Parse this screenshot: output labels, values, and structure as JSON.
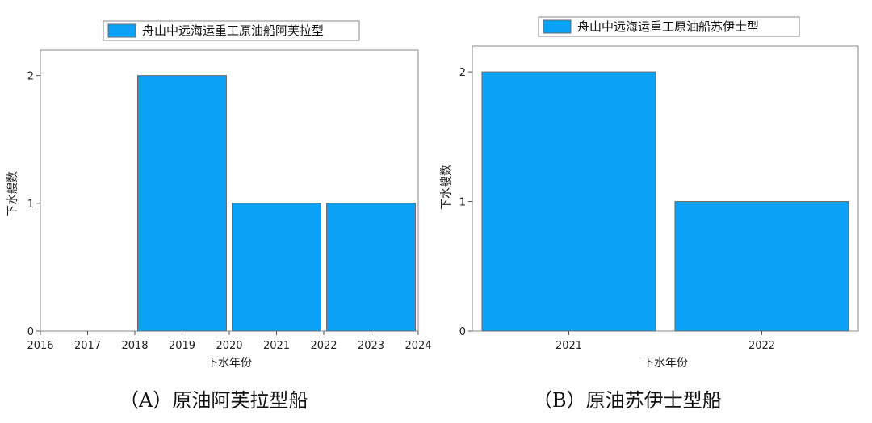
{
  "chart_data": [
    {
      "type": "bar",
      "legend": "舟山中远海运重工原油船阿芙拉型",
      "legend_position": "top-center",
      "xlabel": "下水年份",
      "ylabel": "下水艘数",
      "categories": [
        "2019",
        "2021",
        "2023"
      ],
      "series": [
        {
          "name": "舟山中远海运重工原油船阿芙拉型",
          "values": [
            2,
            1,
            1
          ]
        }
      ],
      "x_ticks": [
        "2016",
        "2017",
        "2018",
        "2019",
        "2020",
        "2021",
        "2022",
        "2023",
        "2024"
      ],
      "y_ticks": [
        "0",
        "1",
        "2"
      ],
      "ylim": [
        0,
        2.2
      ],
      "grid": false,
      "bar_color": "#0aa2f7"
    },
    {
      "type": "bar",
      "legend": "舟山中远海运重工原油船苏伊士型",
      "legend_position": "top-center",
      "xlabel": "下水年份",
      "ylabel": "下水艘数",
      "categories": [
        "2021",
        "2022"
      ],
      "series": [
        {
          "name": "舟山中远海运重工原油船苏伊士型",
          "values": [
            2,
            1
          ]
        }
      ],
      "x_ticks": [
        "2021",
        "2022"
      ],
      "y_ticks": [
        "0",
        "1",
        "2"
      ],
      "ylim": [
        0,
        2.2
      ],
      "grid": false,
      "bar_color": "#0aa2f7"
    }
  ],
  "captions": {
    "a": "（A）原油阿芙拉型船",
    "b": "（B）原油苏伊士型船"
  }
}
